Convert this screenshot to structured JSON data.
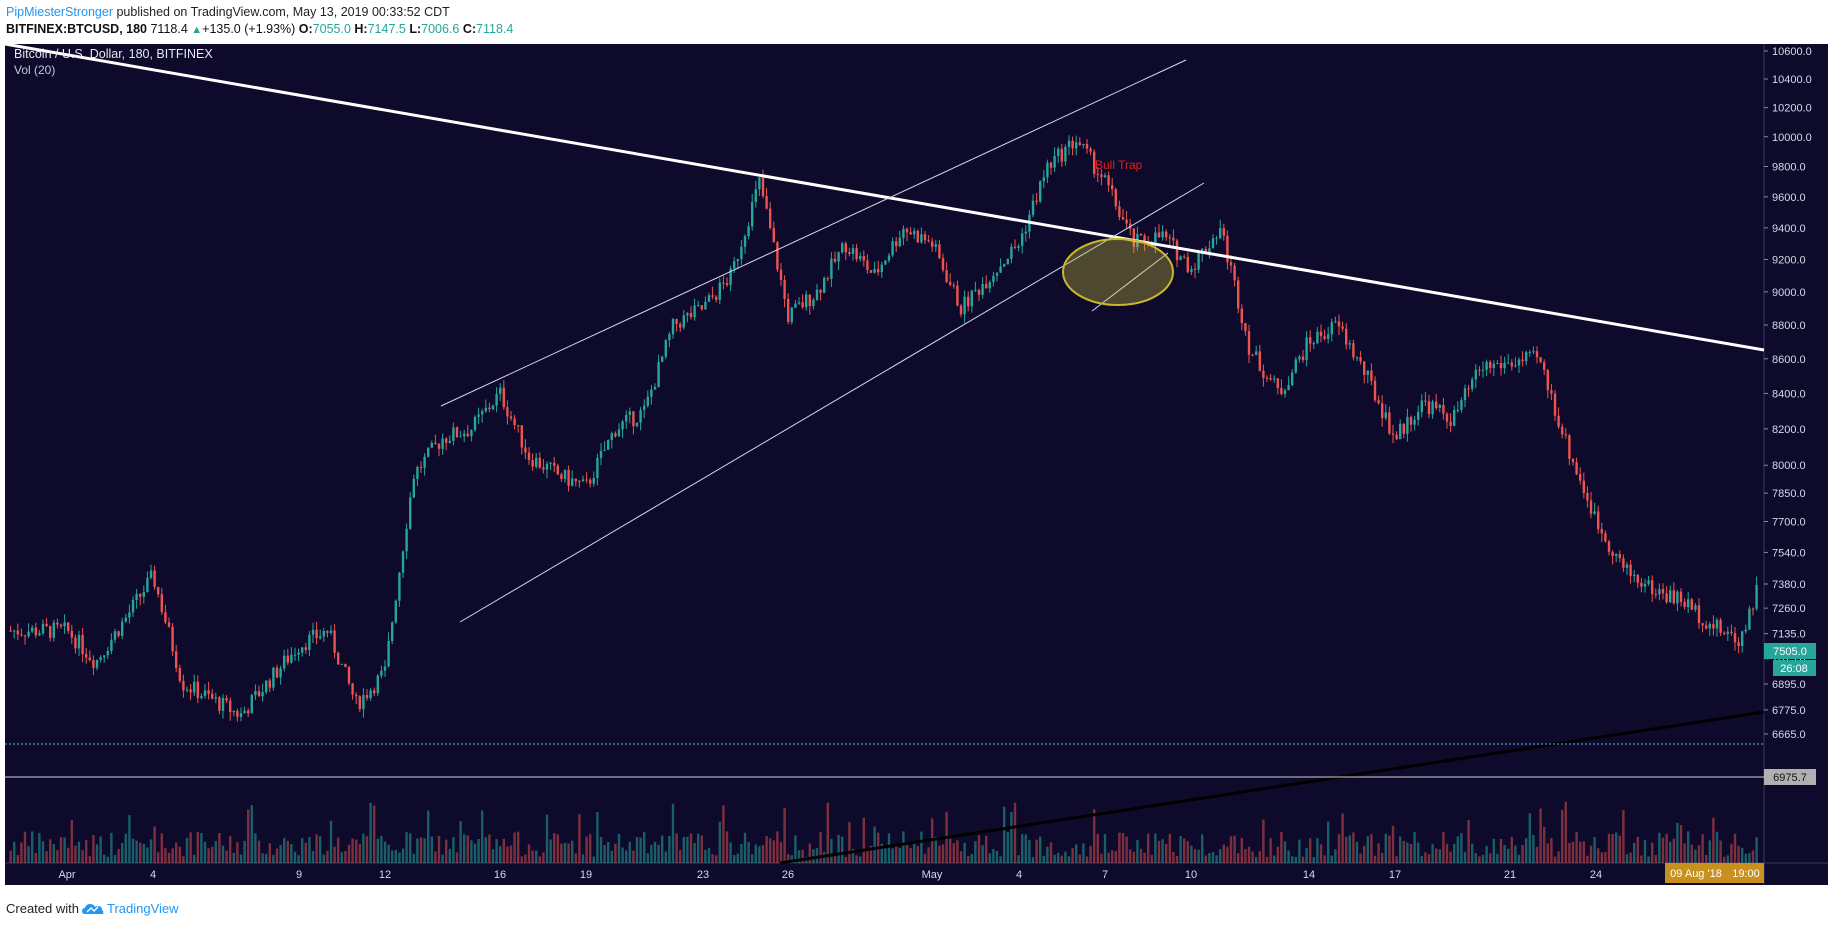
{
  "header": {
    "author": "PipMiesterStronger",
    "published": "published on TradingView.com, May 13, 2019 00:33:52 CDT",
    "symbol": "BITFINEX:BTCUSD, 180",
    "last": "7118.4",
    "change_arrow": "▲",
    "change": "+135.0 (+1.93%)",
    "o_label": "O:",
    "o_value": "7055.0",
    "h_label": "H:",
    "h_value": "7147.5",
    "l_label": "L:",
    "l_value": "7006.6",
    "c_label": "C:",
    "c_value": "7118.4"
  },
  "footer": {
    "created_with": "Created with",
    "brand": "TradingView"
  },
  "chart_data": {
    "type": "candlestick",
    "title": "Bitcoin / U.S. Dollar, 180, BITFINEX",
    "indicator": "Vol (20)",
    "y_ticks": [
      "10600.0",
      "10400.0",
      "10200.0",
      "10000.0",
      "9800.0",
      "9600.0",
      "9400.0",
      "9200.0",
      "9000.0",
      "8800.0",
      "8600.0",
      "8400.0",
      "8200.0",
      "8000.0",
      "7850.0",
      "7700.0",
      "7540.0",
      "7380.0",
      "7260.0",
      "7135.0",
      "7015.0",
      "6895.0",
      "6775.0",
      "6665.0"
    ],
    "y_scale": "log",
    "x_ticks": [
      "Apr",
      "4",
      "9",
      "12",
      "16",
      "19",
      "23",
      "26",
      "May",
      "4",
      "7",
      "10",
      "14",
      "17",
      "21",
      "24"
    ],
    "price_path": [
      [
        "Apr 1",
        7150
      ],
      [
        "Apr 2",
        7000
      ],
      [
        "Apr 3",
        7200
      ],
      [
        "Apr 4",
        7420
      ],
      [
        "Apr 5",
        6900
      ],
      [
        "Apr 7",
        6750
      ],
      [
        "Apr 9",
        7080
      ],
      [
        "Apr 10",
        7150
      ],
      [
        "Apr 11",
        6800
      ],
      [
        "Apr 12",
        6950
      ],
      [
        "Apr 13",
        7950
      ],
      [
        "Apr 14",
        8150
      ],
      [
        "Apr 15",
        8200
      ],
      [
        "Apr 16",
        8400
      ],
      [
        "Apr 17",
        8050
      ],
      [
        "Apr 18",
        7950
      ],
      [
        "Apr 19",
        7880
      ],
      [
        "Apr 20",
        8200
      ],
      [
        "Apr 21",
        8300
      ],
      [
        "Apr 22",
        8800
      ],
      [
        "Apr 23",
        8900
      ],
      [
        "Apr 24",
        9100
      ],
      [
        "Apr 25",
        9700
      ],
      [
        "Apr 26",
        8850
      ],
      [
        "Apr 27",
        9000
      ],
      [
        "Apr 28",
        9300
      ],
      [
        "Apr 29",
        9100
      ],
      [
        "Apr 30",
        9400
      ],
      [
        "May 1",
        9300
      ],
      [
        "May 2",
        8900
      ],
      [
        "May 3",
        9100
      ],
      [
        "May 4",
        9300
      ],
      [
        "May 5",
        9800
      ],
      [
        "May 6",
        9980
      ],
      [
        "May 7",
        9700
      ],
      [
        "May 8",
        9300
      ],
      [
        "May 9",
        9350
      ],
      [
        "May 10",
        9150
      ],
      [
        "May 11",
        9400
      ],
      [
        "May 12",
        8650
      ],
      [
        "May 13",
        8400
      ],
      [
        "May 14",
        8700
      ],
      [
        "May 15",
        8800
      ],
      [
        "May 16",
        8500
      ],
      [
        "May 17",
        8150
      ],
      [
        "May 18",
        8350
      ],
      [
        "May 19",
        8250
      ],
      [
        "May 20",
        8550
      ],
      [
        "May 22",
        8600
      ],
      [
        "May 23",
        8100
      ],
      [
        "May 24",
        7700
      ],
      [
        "May 25",
        7450
      ],
      [
        "May 26",
        7350
      ],
      [
        "May 27",
        7300
      ],
      [
        "May 28",
        7180
      ],
      [
        "May 29",
        7100
      ],
      [
        "May 30",
        7505
      ]
    ],
    "annotations": {
      "bull_trap": "Bull Trap"
    },
    "price_labels": {
      "current": "7505.0",
      "countdown": "26:08",
      "line": "6975.7",
      "cursor_date": "09 Aug '18",
      "cursor_time": "19:00"
    },
    "colors": {
      "background": "#0d0a2b",
      "up": "#26a69a",
      "down": "#ef5350",
      "annotation": "#e02020",
      "ellipse": "#c7b928"
    }
  }
}
